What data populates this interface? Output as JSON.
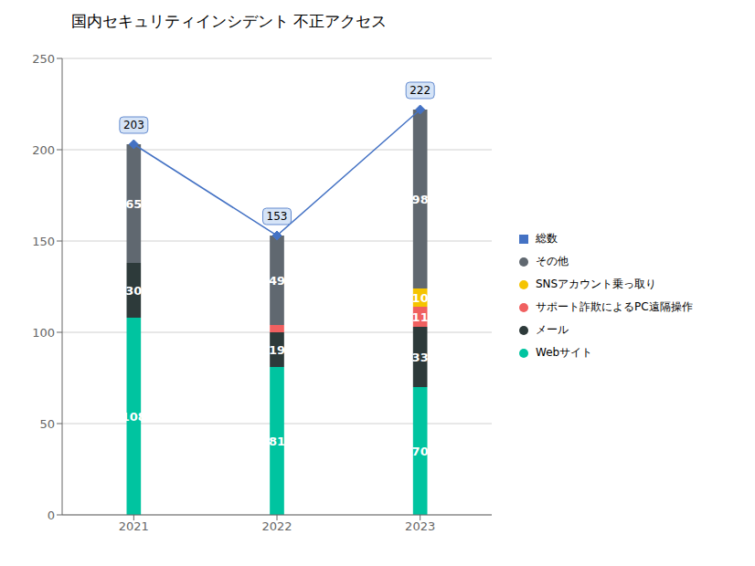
{
  "chart_data": {
    "type": "bar",
    "title": "国内セキュリティインシデント 不正アクセス",
    "categories": [
      "2021",
      "2022",
      "2023"
    ],
    "stacked": true,
    "grid": true,
    "legend": "right",
    "ylim": [
      0,
      250
    ],
    "yticks": [
      0,
      50,
      100,
      150,
      200,
      250
    ],
    "series": [
      {
        "name": "Webサイト",
        "color": "#00C4A0",
        "values": [
          108,
          81,
          70
        ],
        "data_labels": true,
        "value_labels": [
          "108",
          "81",
          "70"
        ]
      },
      {
        "name": "メール",
        "color": "#2D3A3A",
        "values": [
          30,
          19,
          33
        ],
        "data_labels": true,
        "value_labels": [
          "30",
          "19",
          "33"
        ]
      },
      {
        "name": "サポート詐欺によるPC遠隔操作",
        "color": "#F06060",
        "values": [
          0,
          4,
          11
        ],
        "data_labels": true,
        "value_labels": [
          null,
          null,
          "11"
        ]
      },
      {
        "name": "SNSアカウント乗っ取り",
        "color": "#F5C400",
        "values": [
          0,
          0,
          10
        ],
        "data_labels": true,
        "value_labels": [
          null,
          null,
          "10"
        ]
      },
      {
        "name": "その他",
        "color": "#606870",
        "values": [
          65,
          49,
          98
        ],
        "data_labels": true,
        "value_labels": [
          "65",
          "49",
          "98"
        ]
      },
      {
        "name": "総数",
        "type": "line",
        "color": "#4472C4",
        "marker": "diamond",
        "values": [
          203,
          153,
          222
        ],
        "data_labels": true
      }
    ]
  }
}
